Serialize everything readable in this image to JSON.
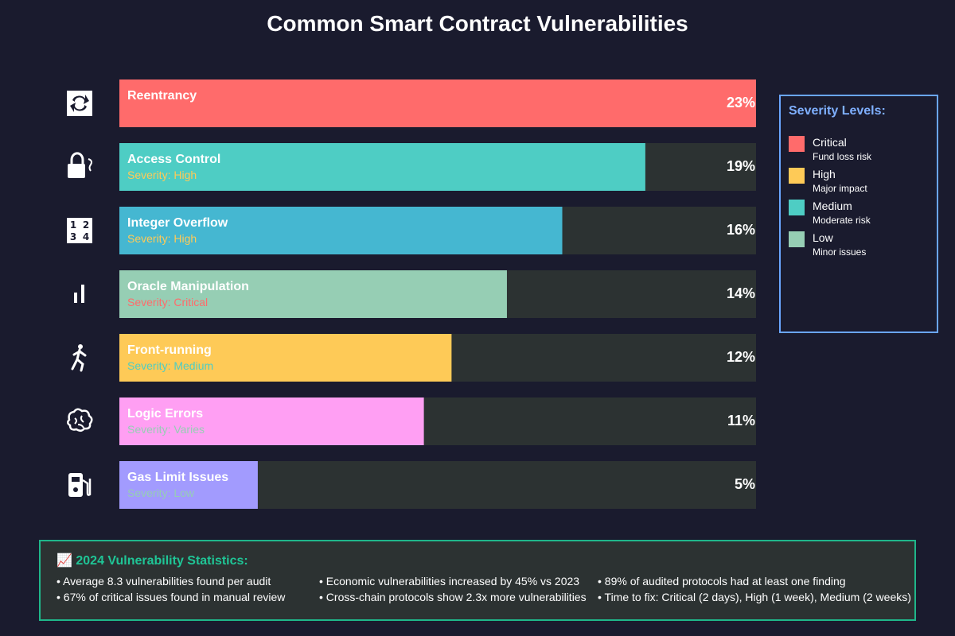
{
  "title": "Common Smart Contract Vulnerabilities",
  "chart_data": {
    "type": "bar",
    "orientation": "horizontal",
    "title": "Common Smart Contract Vulnerabilities",
    "xlim": [
      0,
      23
    ],
    "categories": [
      "Reentrancy",
      "Access Control",
      "Integer Overflow",
      "Oracle Manipulation",
      "Front-running",
      "Logic Errors",
      "Gas Limit Issues"
    ],
    "values": [
      23,
      19,
      16,
      14,
      12,
      11,
      5
    ],
    "value_labels": [
      "23%",
      "19%",
      "16%",
      "14%",
      "12%",
      "11%",
      "5%"
    ],
    "severity_labels": [
      "",
      "Severity: High",
      "Severity: High",
      "Severity: Critical",
      "Severity: Medium",
      "Severity: Varies",
      "Severity: Low"
    ],
    "severity_colors": [
      "#ff6b6b",
      "#feca57",
      "#feca57",
      "#ff6b6b",
      "#4ecdc4",
      "#96ceb4",
      "#96ceb4"
    ],
    "bar_colors": [
      "#ff6b6b",
      "#4ecdc4",
      "#45b7d1",
      "#96ceb4",
      "#feca57",
      "#ff9ff3",
      "#a29bfe"
    ],
    "icons": [
      "cycle-arrows-icon",
      "padlock-icon",
      "number-keypad-icon",
      "bar-chart-icon",
      "runner-icon",
      "brain-icon",
      "fuel-pump-icon"
    ],
    "track_color": "#2c3232"
  },
  "legend": {
    "title": "Severity Levels:",
    "items": [
      {
        "name": "Critical",
        "desc": "Fund loss risk",
        "color": "#ff6b6b"
      },
      {
        "name": "High",
        "desc": "Major impact",
        "color": "#feca57"
      },
      {
        "name": "Medium",
        "desc": "Moderate risk",
        "color": "#4ecdc4"
      },
      {
        "name": "Low",
        "desc": "Minor issues",
        "color": "#96ceb4"
      }
    ]
  },
  "stats": {
    "title": "📈 2024 Vulnerability Statistics:",
    "items": [
      "• Average 8.3 vulnerabilities found per audit",
      "• 67% of critical issues found in manual review",
      "• Economic vulnerabilities increased by 45% vs 2023",
      "• Cross-chain protocols show 2.3x more vulnerabilities",
      "• 89% of audited protocols had at least one finding",
      "• Time to fix: Critical (2 days), High (1 week), Medium (2 weeks)"
    ]
  }
}
